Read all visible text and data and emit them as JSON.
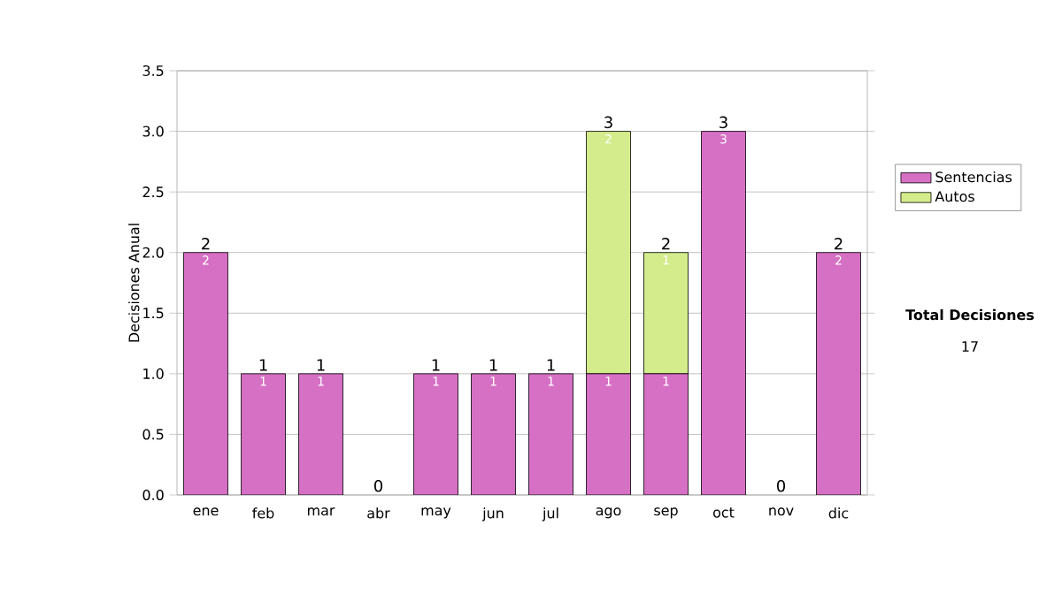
{
  "chart_data": {
    "type": "bar",
    "stacked": true,
    "categories": [
      "ene",
      "feb",
      "mar",
      "abr",
      "may",
      "jun",
      "jul",
      "ago",
      "sep",
      "oct",
      "nov",
      "dic"
    ],
    "ylabel": "Decisiones Anual",
    "series": [
      {
        "name": "Sentencias",
        "color": "#d670c4",
        "values": [
          2,
          1,
          1,
          0,
          1,
          1,
          1,
          1,
          1,
          3,
          0,
          2
        ],
        "value_labels": [
          "2",
          "1",
          "1",
          null,
          "1",
          "1",
          "1",
          "1",
          "1",
          "3",
          null,
          "2"
        ]
      },
      {
        "name": "Autos",
        "color": "#d4ec8c",
        "values": [
          0,
          0,
          0,
          0,
          0,
          0,
          0,
          2,
          1,
          0,
          0,
          0
        ],
        "value_labels": [
          null,
          null,
          null,
          null,
          null,
          null,
          null,
          "2",
          "1",
          null,
          null,
          null
        ]
      }
    ],
    "totals": [
      "2",
      "1",
      "1",
      "0",
      "1",
      "1",
      "1",
      "3",
      "2",
      "3",
      "0",
      "2"
    ],
    "ylim": [
      0,
      3.5
    ],
    "yticks": [
      {
        "value": 0,
        "label": "0.0"
      },
      {
        "value": 0.5,
        "label": "0.5"
      },
      {
        "value": 1,
        "label": "1.0"
      },
      {
        "value": 1.5,
        "label": "1.5"
      },
      {
        "value": 2,
        "label": "2.0"
      },
      {
        "value": 2.5,
        "label": "2.5"
      },
      {
        "value": 3,
        "label": "3.0"
      },
      {
        "value": 3.5,
        "label": "3.5"
      }
    ],
    "grid": "y",
    "legend": "right",
    "annotations": [
      "Total Decisiones",
      "17"
    ]
  }
}
